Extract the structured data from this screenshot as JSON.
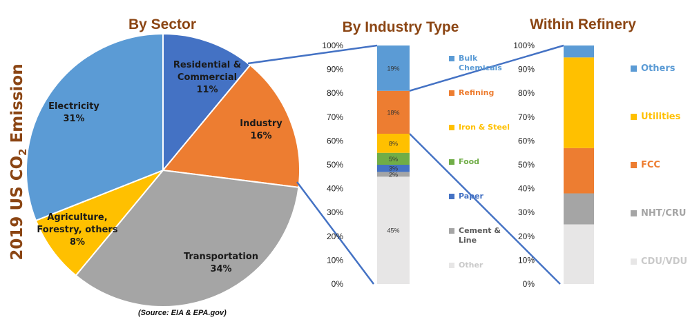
{
  "vertical_title": {
    "prefix": "2019 US CO",
    "sub": "2",
    "suffix": " Emission"
  },
  "source": "(Source: EIA & EPA.gov)",
  "chart_data": [
    {
      "type": "pie",
      "title": "By Sector",
      "slices": [
        {
          "label": "Residential &\nCommercial\n11%",
          "value": 11,
          "color": "#4472c4"
        },
        {
          "label": "Industry\n16%",
          "value": 16,
          "color": "#ed7d31"
        },
        {
          "label": "Transportation\n34%",
          "value": 34,
          "color": "#a5a5a5"
        },
        {
          "label": "Agriculture,\nForestry, others\n8%",
          "value": 8,
          "color": "#ffc000"
        },
        {
          "label": "Electricity\n31%",
          "value": 31,
          "color": "#5b9bd5"
        }
      ]
    },
    {
      "type": "bar",
      "stacked": true,
      "title": "By Industry Type",
      "ylim": [
        0,
        100
      ],
      "yticks": [
        "0%",
        "10%",
        "20%",
        "30%",
        "40%",
        "50%",
        "60%",
        "70%",
        "80%",
        "90%",
        "100%"
      ],
      "segments": [
        {
          "name": "Other",
          "value": 45,
          "label": "45%",
          "color": "#e7e6e6",
          "legend_color": "#e7e6e6"
        },
        {
          "name": "Cement &\nLine",
          "value": 2,
          "label": "2%",
          "color": "#a5a5a5",
          "legend_color": "#a5a5a5"
        },
        {
          "name": "Paper",
          "value": 3,
          "label": "3%",
          "color": "#4472c4",
          "legend_color": "#4472c4"
        },
        {
          "name": "Food",
          "value": 5,
          "label": "5%",
          "color": "#70ad47",
          "legend_color": "#70ad47"
        },
        {
          "name": "Iron & Steel",
          "value": 8,
          "label": "8%",
          "color": "#ffc000",
          "legend_color": "#ffc000"
        },
        {
          "name": "Refining",
          "value": 18,
          "label": "18%",
          "color": "#ed7d31",
          "legend_color": "#ed7d31"
        },
        {
          "name": "Bulk\nChemicals",
          "value": 19,
          "label": "19%",
          "color": "#5b9bd5",
          "legend_color": "#5b9bd5"
        }
      ]
    },
    {
      "type": "bar",
      "stacked": true,
      "title": "Within Refinery",
      "ylim": [
        0,
        100
      ],
      "yticks": [
        "0%",
        "10%",
        "20%",
        "30%",
        "40%",
        "50%",
        "60%",
        "70%",
        "80%",
        "90%",
        "100%"
      ],
      "segments": [
        {
          "name": "CDU/VDU",
          "value": 25,
          "label": "",
          "color": "#e7e6e6",
          "legend_color": "#e7e6e6"
        },
        {
          "name": "NHT/CRU",
          "value": 13,
          "label": "",
          "color": "#a5a5a5",
          "legend_color": "#a5a5a5"
        },
        {
          "name": "FCC",
          "value": 19,
          "label": "",
          "color": "#ed7d31",
          "legend_color": "#ed7d31"
        },
        {
          "name": "Utilities",
          "value": 38,
          "label": "",
          "color": "#ffc000",
          "legend_color": "#ffc000"
        },
        {
          "name": "Others",
          "value": 5,
          "label": "",
          "color": "#5b9bd5",
          "legend_color": "#5b9bd5"
        }
      ]
    }
  ]
}
